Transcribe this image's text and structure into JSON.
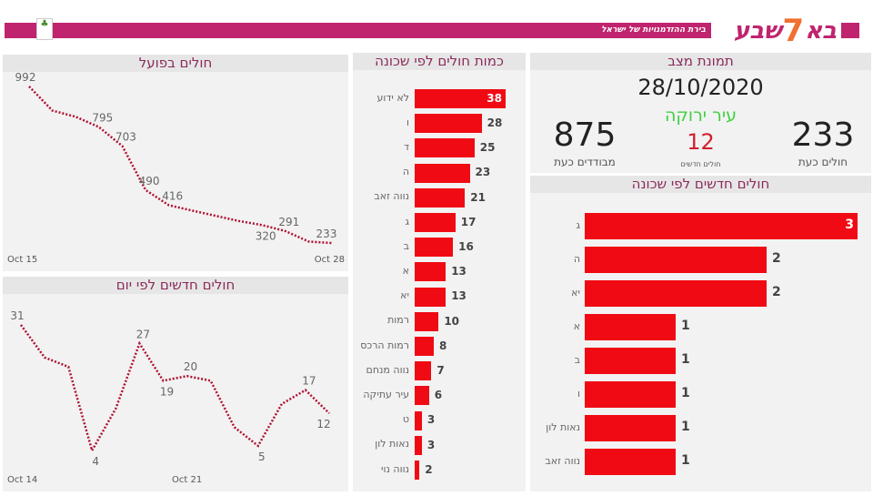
{
  "header": {
    "logo_right": "בא",
    "logo_seven": "7",
    "logo_left": "שבע",
    "tagline": "בירת ההזדמנויות של ישראל",
    "brand_color": "#c0246e"
  },
  "status": {
    "title": "תמונת מצב",
    "date": "28/10/2020",
    "city_status": "עיר ירוקה",
    "new_cases": "12",
    "new_cases_label": "חולים חדשים",
    "isolated": "875",
    "isolated_label": "מבודדים כעת",
    "active": "233",
    "active_label": "חולים כעת"
  },
  "chart_data": [
    {
      "type": "line",
      "title": "חולים בפועל",
      "x_labels": [
        "Oct 15",
        "Oct 28"
      ],
      "x": [
        "Oct 15",
        "Oct 16",
        "Oct 17",
        "Oct 18",
        "Oct 19",
        "Oct 20",
        "Oct 21",
        "Oct 22",
        "Oct 23",
        "Oct 24",
        "Oct 25",
        "Oct 26",
        "Oct 27",
        "Oct 28"
      ],
      "values": [
        992,
        875,
        845,
        795,
        703,
        490,
        416,
        390,
        365,
        340,
        320,
        291,
        240,
        233
      ],
      "data_labels": {
        "0": "992",
        "3": "795",
        "4": "703",
        "5": "490",
        "6": "416",
        "10": "320",
        "11": "291",
        "13": "233"
      },
      "color": "#b01030",
      "line_style": "dotted"
    },
    {
      "type": "line",
      "title": "חולים חדשים לפי יום",
      "x_labels": [
        "Oct 14",
        "Oct 21"
      ],
      "x": [
        "Oct 14",
        "Oct 15",
        "Oct 16",
        "Oct 17",
        "Oct 18",
        "Oct 19",
        "Oct 20",
        "Oct 21",
        "Oct 22",
        "Oct 23",
        "Oct 24",
        "Oct 25",
        "Oct 26",
        "Oct 27"
      ],
      "values": [
        31,
        24,
        22,
        4,
        13,
        27,
        19,
        20,
        19,
        9,
        5,
        14,
        17,
        12
      ],
      "data_labels": {
        "0": "31",
        "3": "4",
        "5": "27",
        "6": "19",
        "7": "20",
        "10": "5",
        "12": "17",
        "13": "12"
      },
      "color": "#b01030",
      "line_style": "dotted"
    },
    {
      "type": "bar",
      "orientation": "horizontal",
      "title": "כמות חולים לפי שכונה",
      "categories": [
        "לא ידוע",
        "ו",
        "ד",
        "ה",
        "נווה זאב",
        "ג",
        "ב",
        "א",
        "יא",
        "רמות",
        "רמות הרכס",
        "נווה מנחם",
        "עיר עתיקה",
        "ט",
        "נאות לון",
        "נווה נוי"
      ],
      "values": [
        38,
        28,
        25,
        23,
        21,
        17,
        16,
        13,
        13,
        10,
        8,
        7,
        6,
        3,
        3,
        2
      ],
      "color": "#f00a14"
    },
    {
      "type": "bar",
      "orientation": "horizontal",
      "title": "חולים חדשים לפי שכונה",
      "categories": [
        "ג",
        "ה",
        "יא",
        "א",
        "ב",
        "ו",
        "נאות לון",
        "נווה זאב"
      ],
      "values": [
        3,
        2,
        2,
        1,
        1,
        1,
        1,
        1
      ],
      "color": "#f00a14"
    }
  ]
}
